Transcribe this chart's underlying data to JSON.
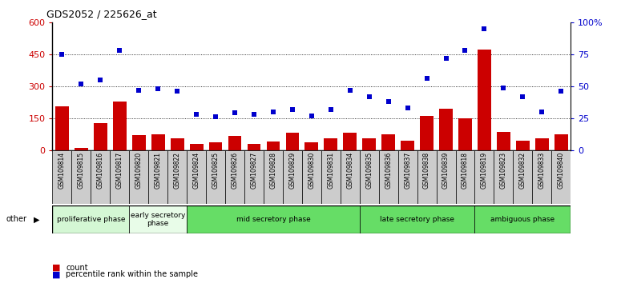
{
  "title": "GDS2052 / 225626_at",
  "samples": [
    "GSM109814",
    "GSM109815",
    "GSM109816",
    "GSM109817",
    "GSM109820",
    "GSM109821",
    "GSM109822",
    "GSM109824",
    "GSM109825",
    "GSM109826",
    "GSM109827",
    "GSM109828",
    "GSM109829",
    "GSM109830",
    "GSM109831",
    "GSM109834",
    "GSM109835",
    "GSM109836",
    "GSM109837",
    "GSM109838",
    "GSM109839",
    "GSM109818",
    "GSM109819",
    "GSM109823",
    "GSM109832",
    "GSM109833",
    "GSM109840"
  ],
  "counts": [
    205,
    10,
    125,
    230,
    70,
    75,
    55,
    30,
    35,
    65,
    30,
    40,
    80,
    35,
    55,
    80,
    55,
    75,
    45,
    160,
    195,
    150,
    475,
    85,
    45,
    55,
    75
  ],
  "percentiles": [
    75,
    52,
    55,
    78,
    47,
    48,
    46,
    28,
    26,
    29,
    28,
    30,
    32,
    27,
    32,
    47,
    42,
    38,
    33,
    56,
    72,
    78,
    95,
    49,
    42,
    30,
    46
  ],
  "bar_color": "#cc0000",
  "dot_color": "#0000cc",
  "ylim_left": [
    0,
    600
  ],
  "ylim_right": [
    0,
    100
  ],
  "yticks_left": [
    0,
    150,
    300,
    450,
    600
  ],
  "yticks_right": [
    0,
    25,
    50,
    75,
    100
  ],
  "ytick_labels_right": [
    "0",
    "25",
    "50",
    "75",
    "100%"
  ],
  "phase_defs": [
    {
      "start": 0,
      "end": 4,
      "color": "#d4f7d4",
      "label": "proliferative phase"
    },
    {
      "start": 4,
      "end": 7,
      "color": "#e8fce8",
      "label": "early secretory\nphase"
    },
    {
      "start": 7,
      "end": 16,
      "color": "#66dd66",
      "label": "mid secretory phase"
    },
    {
      "start": 16,
      "end": 22,
      "color": "#66dd66",
      "label": "late secretory phase"
    },
    {
      "start": 22,
      "end": 27,
      "color": "#66dd66",
      "label": "ambiguous phase"
    }
  ],
  "legend_count_label": "count",
  "legend_pct_label": "percentile rank within the sample",
  "other_label": "other",
  "grid_lines": [
    150,
    300,
    450
  ],
  "xticklabel_bg": "#cccccc"
}
